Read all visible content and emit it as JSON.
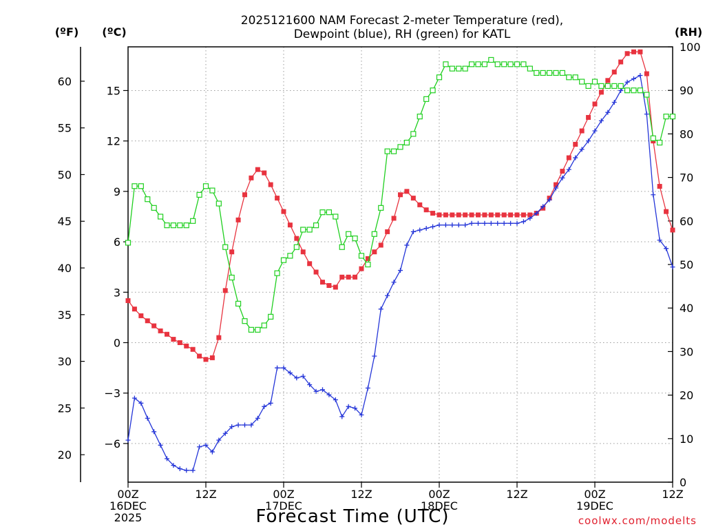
{
  "chart_data": {
    "type": "line",
    "title_line1": "2025121600 NAM Forecast 2-meter Temperature (red),",
    "title_line2": "Dewpoint (blue), RH (green) for KATL",
    "unit_labels": {
      "fahrenheit": "(ºF)",
      "celsius": "(ºC)",
      "rh": "(RH)"
    },
    "xlabel": "Forecast Time (UTC)",
    "credit": "coolwx.com/modelts",
    "x_range_hours": [
      0,
      84
    ],
    "x_ticks": [
      {
        "hour": 0,
        "lines": [
          "00Z",
          "16DEC",
          "2025"
        ]
      },
      {
        "hour": 12,
        "lines": [
          "12Z"
        ]
      },
      {
        "hour": 24,
        "lines": [
          "00Z",
          "17DEC"
        ]
      },
      {
        "hour": 36,
        "lines": [
          "12Z"
        ]
      },
      {
        "hour": 48,
        "lines": [
          "00Z",
          "18DEC"
        ]
      },
      {
        "hour": 60,
        "lines": [
          "12Z"
        ]
      },
      {
        "hour": 72,
        "lines": [
          "00Z",
          "19DEC"
        ]
      },
      {
        "hour": 84,
        "lines": [
          "12Z"
        ]
      }
    ],
    "celsius_axis": {
      "range": [
        -8.3,
        17.6
      ],
      "ticks": [
        -6,
        -3,
        0,
        3,
        6,
        9,
        12,
        15
      ],
      "tick_labels": [
        "−6",
        "−3",
        "0",
        "3",
        "6",
        "9",
        "12",
        "15"
      ]
    },
    "fahrenheit_axis": {
      "ticks": [
        20,
        25,
        30,
        35,
        40,
        45,
        50,
        55,
        60
      ]
    },
    "rh_axis": {
      "range": [
        0,
        100
      ],
      "ticks": [
        0,
        10,
        20,
        30,
        40,
        50,
        60,
        70,
        80,
        90,
        100
      ]
    },
    "grid": true,
    "hours": [
      0,
      1,
      2,
      3,
      4,
      5,
      6,
      7,
      8,
      9,
      10,
      11,
      12,
      13,
      14,
      15,
      16,
      17,
      18,
      19,
      20,
      21,
      22,
      23,
      24,
      25,
      26,
      27,
      28,
      29,
      30,
      31,
      32,
      33,
      34,
      35,
      36,
      37,
      38,
      39,
      40,
      41,
      42,
      43,
      44,
      45,
      46,
      47,
      48,
      49,
      50,
      51,
      52,
      53,
      54,
      55,
      56,
      57,
      58,
      59,
      60,
      61,
      62,
      63,
      64,
      65,
      66,
      67,
      68,
      69,
      70,
      71,
      72,
      73,
      74,
      75,
      76,
      77,
      78,
      79,
      80,
      81,
      82,
      83,
      84
    ],
    "series": [
      {
        "id": "temperature",
        "color": "#e8333f",
        "marker": "filled-square",
        "axis": "celsius",
        "values": [
          2.5,
          2.0,
          1.6,
          1.3,
          1.0,
          0.7,
          0.5,
          0.2,
          0.0,
          -0.2,
          -0.4,
          -0.8,
          -1.0,
          -0.9,
          0.3,
          3.1,
          5.4,
          7.3,
          8.8,
          9.8,
          10.3,
          10.1,
          9.4,
          8.6,
          7.8,
          7.0,
          6.2,
          5.4,
          4.7,
          4.2,
          3.6,
          3.4,
          3.3,
          3.9,
          3.9,
          3.9,
          4.4,
          5.0,
          5.4,
          5.8,
          6.6,
          7.4,
          8.8,
          9.0,
          8.6,
          8.2,
          7.9,
          7.7,
          7.6,
          7.6,
          7.6,
          7.6,
          7.6,
          7.6,
          7.6,
          7.6,
          7.6,
          7.6,
          7.6,
          7.6,
          7.6,
          7.6,
          7.6,
          7.7,
          8.0,
          8.6,
          9.4,
          10.2,
          11.0,
          11.8,
          12.6,
          13.4,
          14.2,
          14.9,
          15.6,
          16.1,
          16.7,
          17.2,
          17.3,
          17.3,
          16.0,
          12.0,
          9.3,
          7.8,
          6.7
        ]
      },
      {
        "id": "dewpoint",
        "color": "#2435d8",
        "marker": "plus",
        "axis": "celsius",
        "values": [
          -5.8,
          -3.3,
          -3.6,
          -4.5,
          -5.3,
          -6.1,
          -6.9,
          -7.3,
          -7.5,
          -7.6,
          -7.6,
          -6.2,
          -6.1,
          -6.5,
          -5.8,
          -5.4,
          -5.0,
          -4.9,
          -4.9,
          -4.9,
          -4.5,
          -3.8,
          -3.6,
          -1.5,
          -1.5,
          -1.8,
          -2.1,
          -2.0,
          -2.5,
          -2.9,
          -2.8,
          -3.1,
          -3.4,
          -4.4,
          -3.8,
          -3.9,
          -4.3,
          -2.7,
          -0.8,
          2.0,
          2.8,
          3.6,
          4.3,
          5.8,
          6.6,
          6.7,
          6.8,
          6.9,
          7.0,
          7.0,
          7.0,
          7.0,
          7.0,
          7.1,
          7.1,
          7.1,
          7.1,
          7.1,
          7.1,
          7.1,
          7.1,
          7.2,
          7.4,
          7.7,
          8.1,
          8.5,
          9.2,
          9.8,
          10.3,
          11.0,
          11.5,
          12.0,
          12.6,
          13.2,
          13.7,
          14.3,
          15.0,
          15.5,
          15.7,
          15.9,
          13.6,
          8.8,
          6.1,
          5.6,
          4.5
        ]
      },
      {
        "id": "relative_humidity",
        "color": "#1fcf1f",
        "marker": "open-square",
        "axis": "rh",
        "values": [
          55,
          68,
          68,
          65,
          63,
          61,
          59,
          59,
          59,
          59,
          60,
          66,
          68,
          67,
          64,
          54,
          47,
          41,
          37,
          35,
          35,
          36,
          38,
          48,
          51,
          52,
          54,
          58,
          58,
          59,
          62,
          62,
          61,
          54,
          57,
          56,
          52,
          50,
          57,
          63,
          76,
          76,
          77,
          78,
          80,
          84,
          88,
          90,
          93,
          96,
          95,
          95,
          95,
          96,
          96,
          96,
          97,
          96,
          96,
          96,
          96,
          96,
          95,
          94,
          94,
          94,
          94,
          94,
          93,
          93,
          92,
          91,
          92,
          91,
          91,
          91,
          91,
          90,
          90,
          90,
          89,
          79,
          78,
          84,
          84
        ]
      }
    ]
  }
}
